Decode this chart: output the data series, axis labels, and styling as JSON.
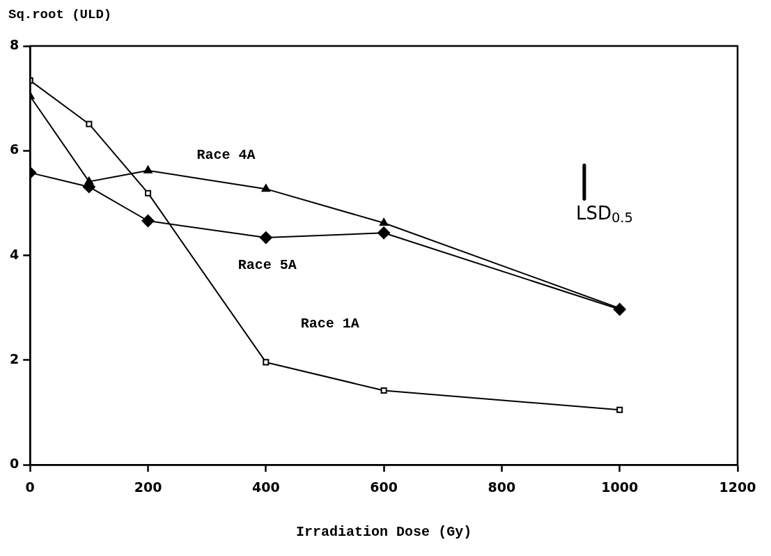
{
  "chart_data": {
    "type": "line",
    "xlabel": "Irradiation Dose (Gy)",
    "ylabel": "Sq.root (ULD)",
    "xlim": [
      0,
      1200
    ],
    "xticks": [
      0,
      200,
      400,
      600,
      800,
      1000,
      1200
    ],
    "ylim": [
      0,
      8
    ],
    "yticks": [
      0,
      2,
      4,
      6,
      8
    ],
    "grid": false,
    "legend": false,
    "line_style": "solid",
    "series": [
      {
        "name": "Race 1A",
        "color": "#000000",
        "marker": "square",
        "x": [
          0,
          100,
          200,
          400,
          600,
          1000
        ],
        "values": [
          7.34,
          6.51,
          5.19,
          1.96,
          1.42,
          1.05
        ]
      },
      {
        "name": "Race 4A",
        "color": "#000000",
        "marker": "triangle",
        "x": [
          0,
          100,
          200,
          400,
          600,
          1000
        ],
        "values": [
          7.04,
          5.41,
          5.62,
          5.27,
          4.62,
          2.99
        ]
      },
      {
        "name": "Race 5A",
        "color": "#000000",
        "marker": "diamond",
        "x": [
          0,
          100,
          200,
          400,
          600,
          1000
        ],
        "values": [
          5.58,
          5.31,
          4.66,
          4.34,
          4.43,
          2.97
        ]
      },
      {
        "color": "#000000",
        "marker": "none",
        "x": [
          940,
          940
        ],
        "values": [
          5.08,
          5.72
        ]
      }
    ],
    "annotations": [
      {
        "text": "LSD$_{0.5}$",
        "x": 940,
        "y": 5.08
      }
    ]
  }
}
